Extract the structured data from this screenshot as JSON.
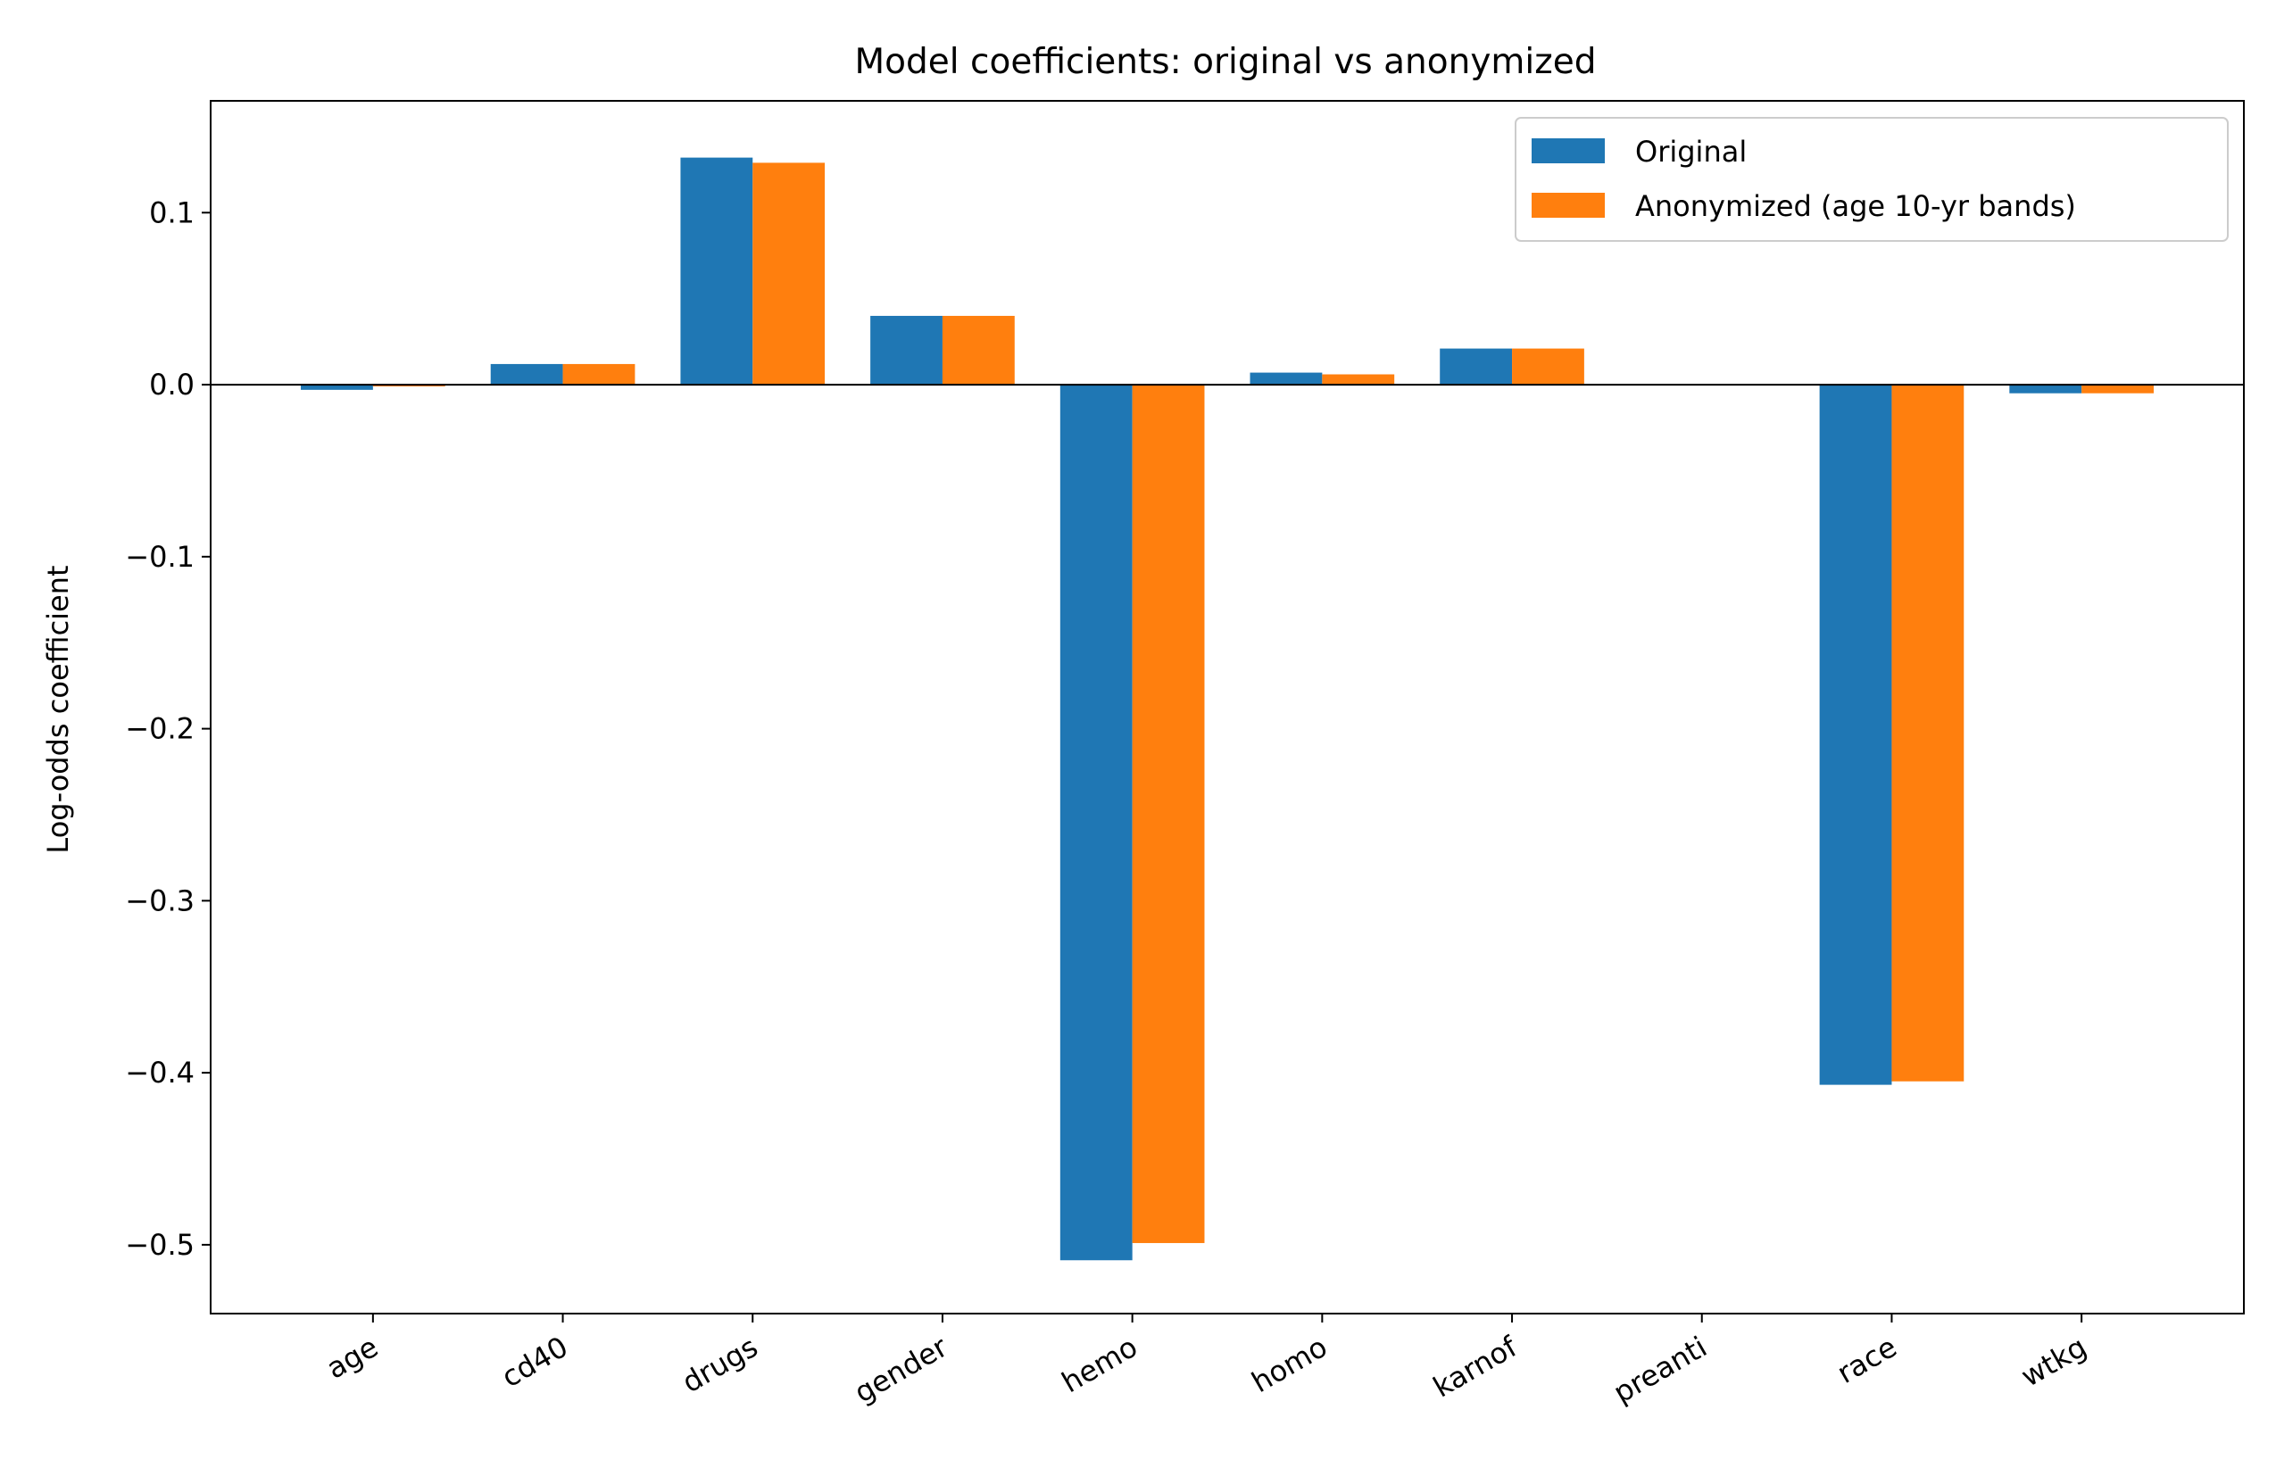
{
  "chart_data": {
    "type": "bar",
    "title": "Model coefficients: original vs anonymized",
    "xlabel": "",
    "ylabel": "Log-odds coefficient",
    "categories": [
      "age",
      "cd40",
      "drugs",
      "gender",
      "hemo",
      "homo",
      "karnof",
      "preanti",
      "race",
      "wtkg"
    ],
    "series": [
      {
        "name": "Original",
        "color": "#1f77b4",
        "values": [
          -0.003,
          0.012,
          0.132,
          0.04,
          -0.509,
          0.007,
          0.021,
          0.0,
          -0.407,
          -0.005
        ]
      },
      {
        "name": "Anonymized (age 10-yr bands)",
        "color": "#ff7f0e",
        "values": [
          -0.001,
          0.012,
          0.129,
          0.04,
          -0.499,
          0.006,
          0.021,
          0.0,
          -0.405,
          -0.005
        ]
      }
    ],
    "ylim": [
      -0.54,
      0.165
    ],
    "yticks": [
      0.1,
      0.0,
      -0.1,
      -0.2,
      -0.3,
      -0.4,
      -0.5
    ],
    "ytick_labels": [
      "0.1",
      "0.0",
      "−0.1",
      "−0.2",
      "−0.3",
      "−0.4",
      "−0.5"
    ],
    "zero_line": true,
    "grid": false,
    "legend_position": "top-right"
  }
}
